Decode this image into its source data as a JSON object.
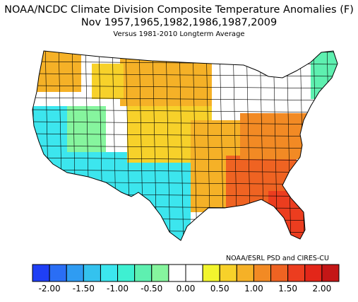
{
  "title": {
    "line1": "NOAA/NCDC Climate Division Composite Temperature Anomalies (F)",
    "line2": "Nov   1957,1965,1982,1986,1987,2009",
    "line3": "Versus 1981-2010 Longterm Average"
  },
  "credit": "NOAA/ESRL PSD and CIRES-CU",
  "legend": {
    "colors": [
      "#1f3ff5",
      "#2a6ef5",
      "#2f9cf2",
      "#34c2ee",
      "#3ce6ee",
      "#3ef0d2",
      "#5ef0b0",
      "#86f59e",
      "#ffffff",
      "#ffffff",
      "#f2f52e",
      "#f7d12a",
      "#f5b127",
      "#f28a24",
      "#ef6322",
      "#ec3d1f",
      "#e32619",
      "#c41616"
    ],
    "tick_labels": [
      "-2.00",
      "-1.50",
      "-1.00",
      "-0.50",
      "0.00",
      "0.50",
      "1.00",
      "1.50",
      "2.00"
    ]
  },
  "regions": [
    {
      "name": "pacific-northwest",
      "color": "#f5b127"
    },
    {
      "name": "northern-plains",
      "color": "#f5b127"
    },
    {
      "name": "upper-midwest",
      "color": "#f7d12a"
    },
    {
      "name": "great-lakes",
      "color": "#ffffff"
    },
    {
      "name": "northeast",
      "color": "#ffffff"
    },
    {
      "name": "new-england-maine",
      "color": "#5ef0b0"
    },
    {
      "name": "california",
      "color": "#3ce6ee"
    },
    {
      "name": "great-basin",
      "color": "#86f59e"
    },
    {
      "name": "desert-southwest",
      "color": "#3ce6ee"
    },
    {
      "name": "texas",
      "color": "#3ce6ee"
    },
    {
      "name": "central-plains",
      "color": "#f7d12a"
    },
    {
      "name": "mid-south",
      "color": "#f5b127"
    },
    {
      "name": "southeast",
      "color": "#ef6322"
    },
    {
      "name": "florida",
      "color": "#ec3d1f"
    },
    {
      "name": "mid-atlantic",
      "color": "#f28a24"
    }
  ]
}
